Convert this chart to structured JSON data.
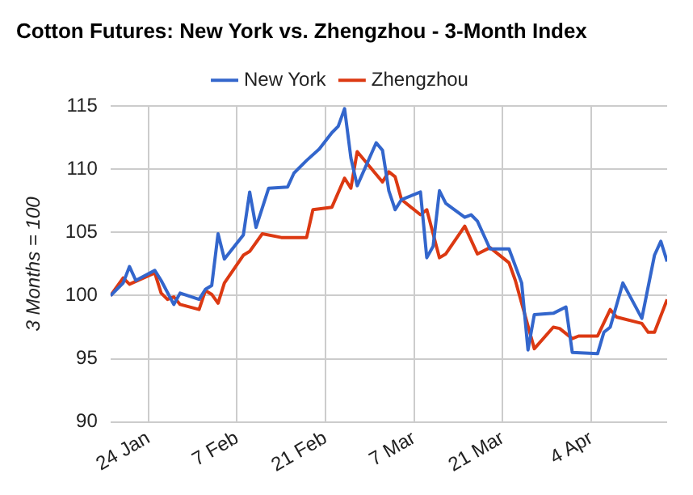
{
  "chart_data": {
    "type": "line",
    "title": "Cotton Futures: New York vs. Zhengzhou - 3-Month Index",
    "ylabel": "3 Months = 100",
    "xlim": [
      "--01-18",
      "--04-16"
    ],
    "xticks": [
      {
        "value": "--01-24",
        "label": "24 Jan"
      },
      {
        "value": "--02-07",
        "label": "7 Feb"
      },
      {
        "value": "--02-21",
        "label": "21 Feb"
      },
      {
        "value": "--03-07",
        "label": "7 Mar"
      },
      {
        "value": "--03-21",
        "label": "21 Mar"
      },
      {
        "value": "--04-04",
        "label": "4 Apr"
      }
    ],
    "ylim": [
      90,
      115
    ],
    "yticks": [
      90,
      95,
      100,
      105,
      110,
      115
    ],
    "grid": true,
    "legend": "top",
    "marker": "none",
    "line_style": "solid",
    "series": [
      {
        "name": "New York",
        "color": "#3366cc",
        "x": [
          "--01-18",
          "--01-20",
          "--01-21",
          "--01-22",
          "--01-25",
          "--01-26",
          "--01-28",
          "--01-29",
          "--02-01",
          "--02-02",
          "--02-03",
          "--02-04",
          "--02-05",
          "--02-08",
          "--02-09",
          "--02-10",
          "--02-12",
          "--02-15",
          "--02-16",
          "--02-18",
          "--02-20",
          "--02-22",
          "--02-23",
          "--02-24",
          "--02-25",
          "--02-26",
          "--03-01",
          "--03-02",
          "--03-03",
          "--03-04",
          "--03-05",
          "--03-08",
          "--03-09",
          "--03-10",
          "--03-11",
          "--03-12",
          "--03-15",
          "--03-16",
          "--03-17",
          "--03-19",
          "--03-22",
          "--03-24",
          "--03-25",
          "--03-26",
          "--03-29",
          "--03-31",
          "--04-01",
          "--04-05",
          "--04-06",
          "--04-07",
          "--04-09",
          "--04-12",
          "--04-14",
          "--04-15",
          "--04-16"
        ],
        "values": [
          100,
          101.0,
          102.3,
          101.2,
          102.0,
          101.2,
          99.3,
          100.2,
          99.7,
          100.5,
          100.8,
          104.9,
          102.9,
          104.8,
          108.2,
          105.4,
          108.5,
          108.6,
          109.7,
          110.7,
          111.6,
          112.9,
          113.4,
          114.8,
          110.9,
          108.7,
          112.1,
          111.5,
          108.3,
          106.8,
          107.6,
          108.2,
          103.0,
          103.9,
          108.3,
          107.3,
          106.2,
          106.4,
          105.9,
          103.7,
          103.7,
          101.0,
          95.7,
          98.5,
          98.6,
          99.1,
          95.5,
          95.4,
          97.1,
          97.5,
          101.0,
          98.2,
          103.2,
          104.3,
          102.7
        ]
      },
      {
        "name": "Zhengzhou",
        "color": "#dc3912",
        "x": [
          "--01-18",
          "--01-20",
          "--01-21",
          "--01-25",
          "--01-26",
          "--01-27",
          "--01-28",
          "--01-29",
          "--02-01",
          "--02-02",
          "--02-03",
          "--02-04",
          "--02-05",
          "--02-08",
          "--02-09",
          "--02-11",
          "--02-14",
          "--02-18",
          "--02-19",
          "--02-22",
          "--02-24",
          "--02-25",
          "--02-26",
          "--03-02",
          "--03-03",
          "--03-04",
          "--03-05",
          "--03-08",
          "--03-09",
          "--03-11",
          "--03-12",
          "--03-15",
          "--03-17",
          "--03-19",
          "--03-22",
          "--03-23",
          "--03-26",
          "--03-29",
          "--03-30",
          "--04-01",
          "--04-02",
          "--04-05",
          "--04-07",
          "--04-08",
          "--04-12",
          "--04-13",
          "--04-14",
          "--04-16"
        ],
        "values": [
          100,
          101.4,
          100.9,
          101.8,
          100.2,
          99.7,
          99.9,
          99.3,
          98.9,
          100.4,
          100.1,
          99.4,
          101.0,
          103.2,
          103.5,
          104.9,
          104.6,
          104.6,
          106.8,
          107.0,
          109.3,
          108.5,
          111.4,
          109.0,
          109.8,
          109.4,
          107.6,
          106.4,
          106.8,
          103.0,
          103.3,
          105.5,
          103.3,
          103.8,
          102.6,
          101.2,
          95.8,
          97.5,
          97.4,
          96.6,
          96.8,
          96.8,
          98.9,
          98.3,
          97.8,
          97.1,
          97.1,
          99.7
        ]
      }
    ]
  }
}
